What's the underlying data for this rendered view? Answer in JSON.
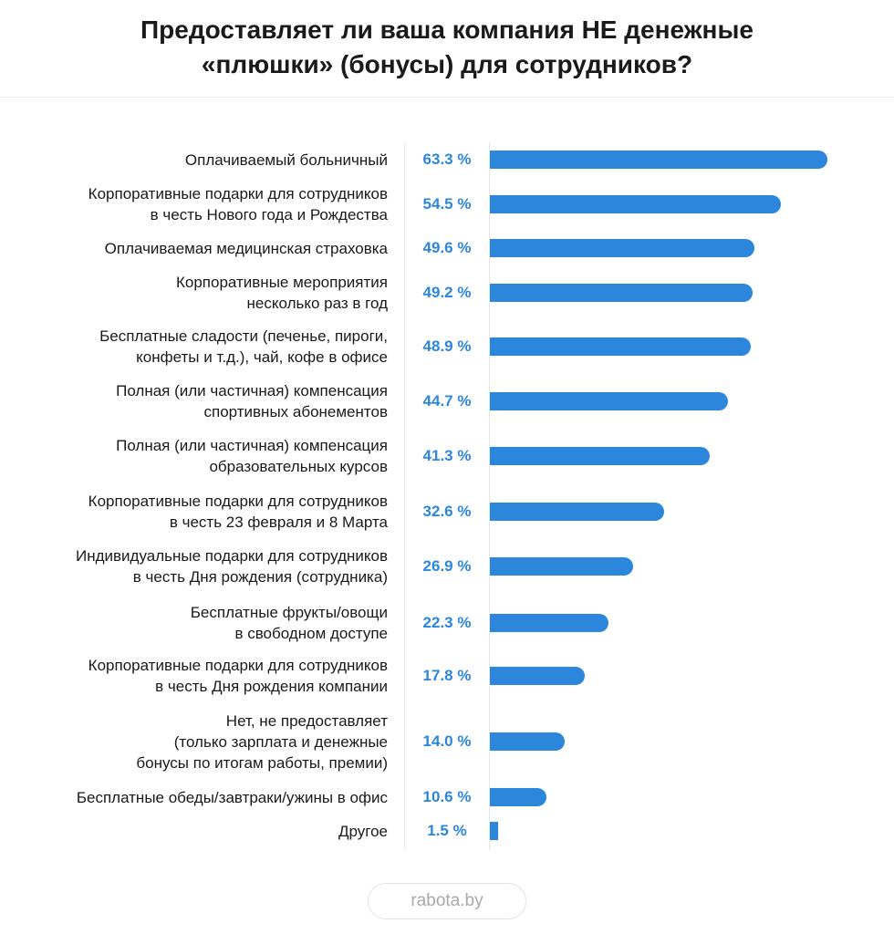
{
  "title_lines": [
    "Предоставляет ли ваша компания НЕ денежные",
    "«плюшки» (бонусы) для сотрудников?"
  ],
  "footer": {
    "source": "rabota.by"
  },
  "colors": {
    "bar": "#2c86dc",
    "value_text": "#2c86dc",
    "label_text": "#1a1a1a"
  },
  "chart_data": {
    "type": "bar",
    "orientation": "horizontal",
    "title": "Предоставляет ли ваша компания НЕ денежные «плюшки» (бонусы) для сотрудников?",
    "xlim": [
      0,
      63.3
    ],
    "unit": "%",
    "categories": [
      [
        "Оплачиваемый больничный"
      ],
      [
        "Корпоративные подарки для сотрудников",
        "в честь Нового года и Рождества"
      ],
      [
        "Оплачиваемая медицинская страховка"
      ],
      [
        "Корпоративные мероприятия",
        "несколько раз в год"
      ],
      [
        "Бесплатные сладости (печенье, пироги,",
        "конфеты и т.д.), чай, кофе в офисе"
      ],
      [
        "Полная (или частичная) компенсация",
        "спортивных абонементов"
      ],
      [
        "Полная (или частичная) компенсация",
        "образовательных курсов"
      ],
      [
        "Корпоративные подарки для сотрудников",
        "в честь 23 февраля и 8 Марта"
      ],
      [
        "Индивидуальные подарки для сотрудников",
        "в честь Дня рождения (сотрудника)"
      ],
      [
        "Бесплатные фрукты/овощи",
        "в свободном доступе"
      ],
      [
        "Корпоративные подарки для сотрудников",
        "в честь Дня рождения компании"
      ],
      [
        "Нет, не предоставляет",
        "(только зарплата и денежные",
        "бонусы по итогам работы, премии)"
      ],
      [
        "Бесплатные обеды/завтраки/ужины в офис"
      ],
      [
        "Другое"
      ]
    ],
    "values": [
      63.3,
      54.5,
      49.6,
      49.2,
      48.9,
      44.7,
      41.3,
      32.6,
      26.9,
      22.3,
      17.8,
      14.0,
      10.6,
      1.5
    ],
    "value_labels": [
      "63.3 %",
      "54.5 %",
      "49.6 %",
      "49.2 %",
      "48.9 %",
      "44.7 %",
      "41.3 %",
      "32.6 %",
      "26.9 %",
      "22.3 %",
      "17.8 %",
      "14.0 %",
      "10.6 %",
      "1.5 %"
    ]
  }
}
